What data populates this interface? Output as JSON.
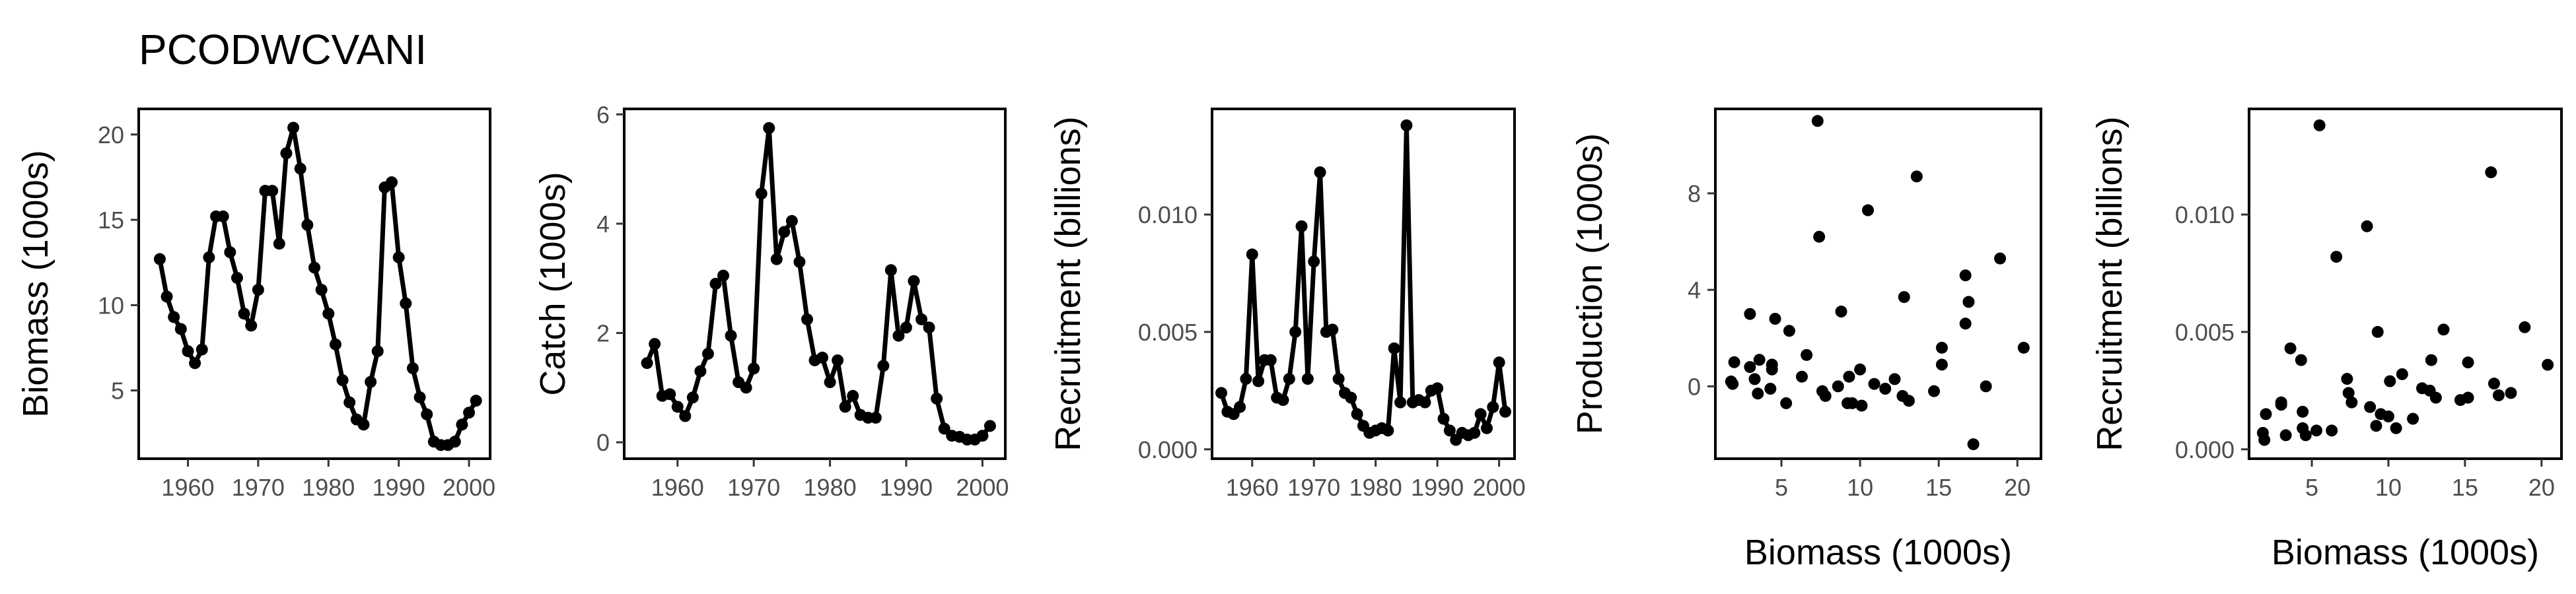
{
  "title": "PCODWCVANI",
  "colors": {
    "ink": "#000000",
    "tick_text": "#4d4d4d",
    "background": "#ffffff"
  },
  "chart_data": [
    {
      "type": "line",
      "name": "biomass",
      "xlabel": "",
      "ylabel": "Biomass (1000s)",
      "xlim": [
        1953,
        2003
      ],
      "ylim": [
        1,
        21.5
      ],
      "xticks": [
        1960,
        1970,
        1980,
        1990,
        2000
      ],
      "yticks": [
        5,
        10,
        15,
        20
      ],
      "x": [
        1956,
        1957,
        1958,
        1959,
        1960,
        1961,
        1962,
        1963,
        1964,
        1965,
        1966,
        1967,
        1968,
        1969,
        1970,
        1971,
        1972,
        1973,
        1974,
        1975,
        1976,
        1977,
        1978,
        1979,
        1980,
        1981,
        1982,
        1983,
        1984,
        1985,
        1986,
        1987,
        1988,
        1989,
        1990,
        1991,
        1992,
        1993,
        1994,
        1995,
        1996,
        1997,
        1998,
        1999,
        2000,
        2001
      ],
      "y": [
        12.7,
        10.5,
        9.3,
        8.6,
        7.3,
        6.6,
        7.4,
        12.8,
        15.2,
        15.2,
        13.1,
        11.6,
        9.5,
        8.8,
        10.9,
        16.7,
        16.7,
        13.6,
        18.9,
        20.4,
        18.0,
        14.7,
        12.2,
        10.9,
        9.5,
        7.7,
        5.6,
        4.3,
        3.3,
        3.0,
        5.5,
        7.3,
        16.9,
        17.2,
        12.8,
        10.1,
        6.3,
        4.6,
        3.6,
        2.0,
        1.8,
        1.8,
        2.0,
        3.0,
        3.7,
        4.4
      ]
    },
    {
      "type": "line",
      "name": "catch",
      "xlabel": "",
      "ylabel": "Catch (1000s)",
      "xlim": [
        1953,
        2003
      ],
      "ylim": [
        -0.3,
        6.1
      ],
      "xticks": [
        1960,
        1970,
        1980,
        1990,
        2000
      ],
      "yticks": [
        0,
        2,
        4,
        6
      ],
      "x": [
        1956,
        1957,
        1958,
        1959,
        1960,
        1961,
        1962,
        1963,
        1964,
        1965,
        1966,
        1967,
        1968,
        1969,
        1970,
        1971,
        1972,
        1973,
        1974,
        1975,
        1976,
        1977,
        1978,
        1979,
        1980,
        1981,
        1982,
        1983,
        1984,
        1985,
        1986,
        1987,
        1988,
        1989,
        1990,
        1991,
        1992,
        1993,
        1994,
        1995,
        1996,
        1997,
        1998,
        1999,
        2000,
        2001
      ],
      "y": [
        1.45,
        1.8,
        0.85,
        0.88,
        0.65,
        0.48,
        0.82,
        1.3,
        1.62,
        2.9,
        3.05,
        1.95,
        1.1,
        1.0,
        1.35,
        4.55,
        5.75,
        3.35,
        3.85,
        4.05,
        3.3,
        2.25,
        1.5,
        1.55,
        1.1,
        1.5,
        0.65,
        0.85,
        0.5,
        0.45,
        0.45,
        1.4,
        3.15,
        1.95,
        2.1,
        2.95,
        2.25,
        2.1,
        0.8,
        0.25,
        0.12,
        0.1,
        0.05,
        0.05,
        0.12,
        0.3
      ]
    },
    {
      "type": "line",
      "name": "recruitment",
      "xlabel": "",
      "ylabel": "Recruitment (billions)",
      "xlim": [
        1953.5,
        2002.5
      ],
      "ylim": [
        -0.0004,
        0.0145
      ],
      "xticks": [
        1960,
        1970,
        1980,
        1990,
        2000
      ],
      "xtick_labels": [
        "1960",
        "1970",
        "1980",
        "1990",
        "2000"
      ],
      "yticks": [
        0.0,
        0.005,
        0.01
      ],
      "ytick_labels": [
        "0.000",
        "0.005",
        "0.010"
      ],
      "x": [
        1955,
        1956,
        1957,
        1958,
        1959,
        1960,
        1961,
        1962,
        1963,
        1964,
        1965,
        1966,
        1967,
        1968,
        1969,
        1970,
        1971,
        1972,
        1973,
        1974,
        1975,
        1976,
        1977,
        1978,
        1979,
        1980,
        1981,
        1982,
        1983,
        1984,
        1985,
        1986,
        1987,
        1988,
        1989,
        1990,
        1991,
        1992,
        1993,
        1994,
        1995,
        1996,
        1997,
        1998,
        1999,
        2000,
        2001
      ],
      "y": [
        0.0024,
        0.0016,
        0.0015,
        0.0018,
        0.003,
        0.0083,
        0.0029,
        0.0038,
        0.0038,
        0.0022,
        0.0021,
        0.003,
        0.005,
        0.0095,
        0.003,
        0.008,
        0.0118,
        0.005,
        0.0051,
        0.003,
        0.0024,
        0.0022,
        0.0015,
        0.001,
        0.0007,
        0.0008,
        0.0009,
        0.0008,
        0.0043,
        0.002,
        0.0138,
        0.002,
        0.0021,
        0.002,
        0.0025,
        0.0026,
        0.0013,
        0.0008,
        0.0004,
        0.0007,
        0.0006,
        0.0007,
        0.0015,
        0.0009,
        0.0018,
        0.0037,
        0.0016
      ]
    },
    {
      "type": "scatter",
      "name": "production",
      "xlabel": "Biomass (1000s)",
      "ylabel": "Production (1000s)",
      "xlim": [
        0.8,
        21.5
      ],
      "ylim": [
        -3.0,
        11.5
      ],
      "xticks": [
        5,
        10,
        15,
        20
      ],
      "yticks": [
        0,
        4,
        8
      ],
      "x": [
        1.8,
        2.0,
        1.9,
        3.0,
        3.3,
        3.5,
        3.6,
        4.3,
        4.6,
        4.4,
        5.3,
        5.5,
        6.3,
        6.6,
        7.3,
        7.6,
        7.4,
        8.6,
        8.8,
        9.3,
        9.2,
        9.5,
        10.1,
        10.0,
        10.5,
        10.9,
        11.6,
        12.2,
        12.8,
        12.7,
        13.1,
        13.6,
        14.7,
        15.2,
        15.2,
        16.7,
        16.9,
        16.7,
        17.2,
        18.0,
        18.9,
        20.4,
        3.0,
        4.4,
        7.8
      ],
      "y": [
        0.2,
        1.0,
        0.1,
        3.0,
        0.3,
        -0.3,
        1.1,
        -0.1,
        2.8,
        0.7,
        -0.7,
        2.3,
        0.4,
        1.3,
        11.0,
        -0.2,
        6.2,
        0.0,
        3.1,
        0.4,
        -0.7,
        -0.7,
        -0.8,
        0.7,
        7.3,
        0.1,
        -0.1,
        0.3,
        3.7,
        -0.4,
        -0.6,
        8.7,
        -0.2,
        1.6,
        0.9,
        4.6,
        3.5,
        2.6,
        -2.4,
        0.0,
        5.3,
        1.6,
        0.8,
        0.9,
        -0.4
      ]
    },
    {
      "type": "scatter",
      "name": "recruitment-vs-biomass",
      "xlabel": "Biomass (1000s)",
      "ylabel": "Recruitment (billions)",
      "xlim": [
        0.9,
        21.3
      ],
      "ylim": [
        -0.0004,
        0.0145
      ],
      "xticks": [
        5,
        10,
        15,
        20
      ],
      "yticks": [
        0.0,
        0.005,
        0.01
      ],
      "ytick_labels": [
        "0.000",
        "0.005",
        "0.010"
      ],
      "x": [
        1.8,
        2.0,
        1.9,
        3.0,
        3.3,
        3.6,
        4.3,
        4.6,
        4.4,
        5.5,
        6.3,
        6.6,
        7.3,
        7.6,
        7.4,
        8.6,
        8.8,
        9.3,
        9.5,
        10.1,
        10.5,
        10.9,
        11.6,
        12.2,
        12.8,
        13.1,
        13.6,
        14.7,
        15.2,
        16.7,
        16.9,
        17.2,
        18.0,
        18.9,
        20.4,
        3.0,
        4.4,
        5.3,
        9.2,
        10.0,
        12.7,
        15.2
      ],
      "y": [
        0.0007,
        0.0015,
        0.0004,
        0.0019,
        0.0006,
        0.0043,
        0.0038,
        0.0006,
        0.0016,
        0.0138,
        0.0008,
        0.0082,
        0.003,
        0.002,
        0.0024,
        0.0095,
        0.0018,
        0.005,
        0.0015,
        0.0029,
        0.0009,
        0.0032,
        0.0013,
        0.0026,
        0.0038,
        0.0022,
        0.0051,
        0.0021,
        0.0037,
        0.0118,
        0.0028,
        0.0023,
        0.0024,
        0.0052,
        0.0036,
        0.002,
        0.0009,
        0.0008,
        0.001,
        0.0014,
        0.0025,
        0.0022
      ]
    }
  ]
}
